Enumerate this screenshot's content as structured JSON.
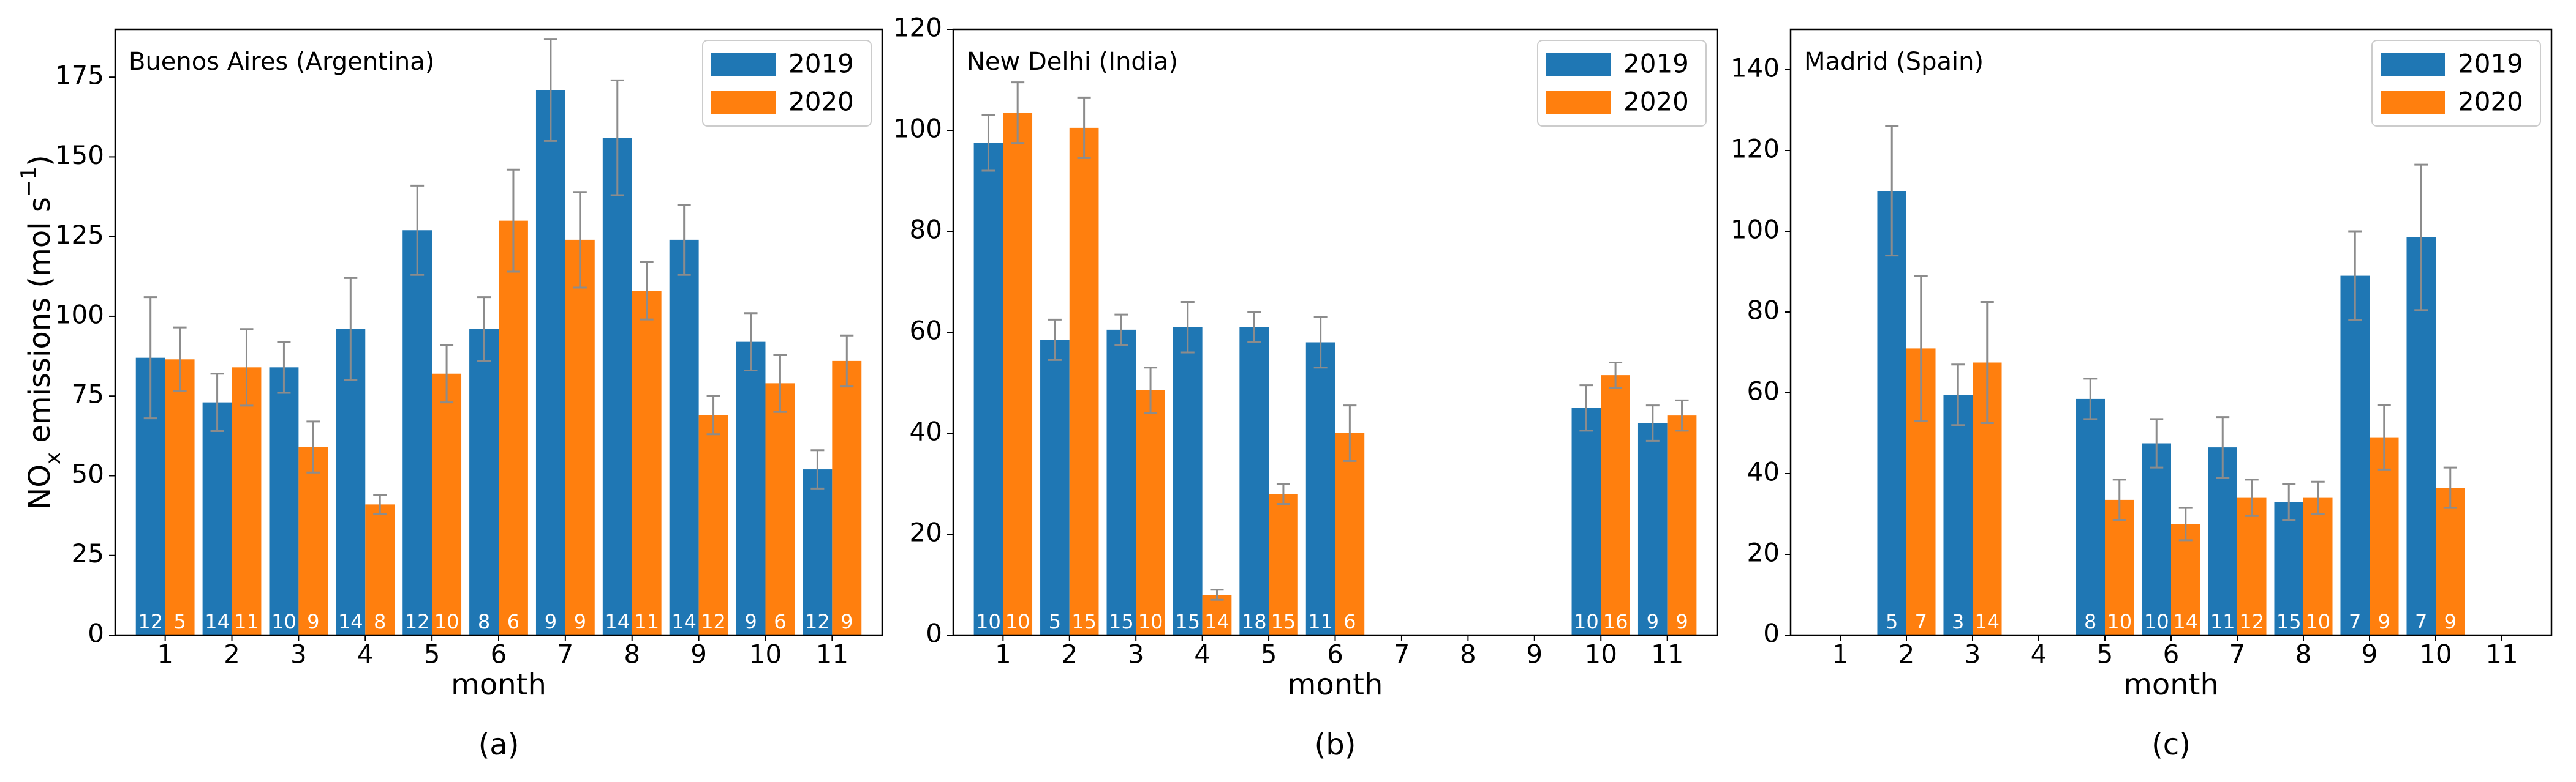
{
  "chart_data": [
    {
      "type": "bar",
      "title": "Buenos Aires (Argentina)",
      "xlabel": "month",
      "caption": "(a)",
      "ylabel": [
        "NO",
        "x",
        " emissions (mol s",
        "−1",
        ")"
      ],
      "categories": [
        1,
        2,
        3,
        4,
        5,
        6,
        7,
        8,
        9,
        10,
        11
      ],
      "ylim": [
        0,
        190
      ],
      "yticks": [
        0,
        25,
        50,
        75,
        100,
        125,
        150,
        175
      ],
      "legend": "upper right",
      "series": [
        {
          "name": "2019",
          "color": "#1f77b4",
          "values": [
            87,
            73,
            84,
            96,
            127,
            96,
            171,
            156,
            124,
            92,
            52
          ],
          "errors": [
            19,
            9,
            8,
            16,
            14,
            10,
            16,
            18,
            11,
            9,
            6
          ],
          "counts": [
            12,
            14,
            10,
            14,
            12,
            8,
            9,
            14,
            14,
            9,
            12
          ]
        },
        {
          "name": "2020",
          "color": "#ff7f0e",
          "values": [
            86.5,
            84,
            59,
            41,
            82,
            130,
            124,
            108,
            69,
            79,
            86
          ],
          "errors": [
            10,
            12,
            8,
            3,
            9,
            16,
            15,
            9,
            6,
            9,
            8
          ],
          "counts": [
            5,
            11,
            9,
            8,
            10,
            6,
            9,
            11,
            12,
            6,
            9
          ]
        }
      ]
    },
    {
      "type": "bar",
      "title": "New Delhi (India)",
      "xlabel": "month",
      "caption": "(b)",
      "categories": [
        1,
        2,
        3,
        4,
        5,
        6,
        7,
        8,
        9,
        10,
        11
      ],
      "ylim": [
        0,
        120
      ],
      "yticks": [
        0,
        20,
        40,
        60,
        80,
        100,
        120
      ],
      "legend": "upper right",
      "series": [
        {
          "name": "2019",
          "color": "#1f77b4",
          "values": [
            97.5,
            58.5,
            60.5,
            61,
            61,
            58,
            null,
            null,
            null,
            45,
            42
          ],
          "errors": [
            5.5,
            4,
            3,
            5,
            3,
            5,
            null,
            null,
            null,
            4.5,
            3.5
          ],
          "counts": [
            10,
            5,
            15,
            15,
            18,
            11,
            null,
            null,
            null,
            10,
            9
          ]
        },
        {
          "name": "2020",
          "color": "#ff7f0e",
          "values": [
            103.5,
            100.5,
            48.5,
            8,
            28,
            40,
            null,
            null,
            null,
            51.5,
            43.5
          ],
          "errors": [
            6,
            6,
            4.5,
            1,
            2,
            5.5,
            null,
            null,
            null,
            2.5,
            3
          ],
          "counts": [
            10,
            15,
            10,
            14,
            15,
            6,
            null,
            null,
            null,
            16,
            9
          ]
        }
      ]
    },
    {
      "type": "bar",
      "title": "Madrid (Spain)",
      "xlabel": "month",
      "caption": "(c)",
      "categories": [
        1,
        2,
        3,
        4,
        5,
        6,
        7,
        8,
        9,
        10,
        11
      ],
      "ylim": [
        0,
        150
      ],
      "yticks": [
        0,
        20,
        40,
        60,
        80,
        100,
        120,
        140
      ],
      "legend": "upper right",
      "series": [
        {
          "name": "2019",
          "color": "#1f77b4",
          "values": [
            null,
            110,
            59.5,
            null,
            58.5,
            47.5,
            46.5,
            33,
            89,
            98.5,
            null
          ],
          "errors": [
            null,
            16,
            7.5,
            null,
            5,
            6,
            7.5,
            4.5,
            11,
            18,
            null
          ],
          "counts": [
            null,
            5,
            3,
            null,
            8,
            10,
            11,
            15,
            7,
            7,
            null
          ]
        },
        {
          "name": "2020",
          "color": "#ff7f0e",
          "values": [
            null,
            71,
            67.5,
            null,
            33.5,
            27.5,
            34,
            34,
            49,
            36.5,
            null
          ],
          "errors": [
            null,
            18,
            15,
            null,
            5,
            4,
            4.5,
            4,
            8,
            5,
            null
          ],
          "counts": [
            null,
            7,
            14,
            null,
            10,
            14,
            12,
            10,
            9,
            9,
            null
          ]
        }
      ]
    }
  ]
}
